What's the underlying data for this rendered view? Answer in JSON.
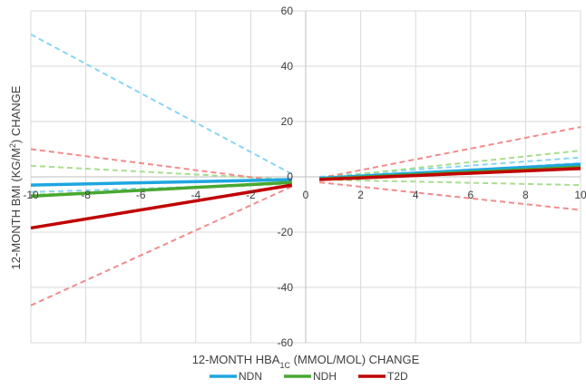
{
  "chart_data": {
    "type": "line",
    "xlabel": "12-MONTH HBA",
    "xlabel_sub": "1C",
    "xlabel_rest": " (MMOL/MOL) CHANGE",
    "ylabel": "12-MONTH BMI (KG/M",
    "ylabel_sup": "2",
    "ylabel_rest": ") CHANGE",
    "xlim": [
      -10,
      10
    ],
    "ylim": [
      -60,
      60
    ],
    "x_ticks": [
      "-10",
      "-8",
      "-6",
      "-4",
      "-2",
      "0",
      "2",
      "4",
      "6",
      "8",
      "10"
    ],
    "y_ticks": [
      "60",
      "40",
      "20",
      "0",
      "-20",
      "-40",
      "-60"
    ],
    "grid": true,
    "legend_position": "bottom",
    "colors": {
      "NDN": "#1ea6e0",
      "NDH": "#48a832",
      "T2D": "#c00000",
      "NDN_ci": "#87d6f5",
      "NDH_ci": "#a9dd8f",
      "T2D_ci": "#f28b8b",
      "grid": "#d9d9d9",
      "axis": "#bfbfbf"
    },
    "series": [
      {
        "name": "NDN",
        "segments": [
          [
            [
              -10,
              -3
            ],
            [
              -0.5,
              -1
            ]
          ],
          [
            [
              0.5,
              -0.5
            ],
            [
              10,
              4.5
            ]
          ]
        ]
      },
      {
        "name": "NDH",
        "segments": [
          [
            [
              -10,
              -7
            ],
            [
              -0.5,
              -2
            ]
          ],
          [
            [
              0.5,
              -0.8
            ],
            [
              10,
              3.5
            ]
          ]
        ]
      },
      {
        "name": "T2D",
        "segments": [
          [
            [
              -10,
              -18.5
            ],
            [
              -0.5,
              -3
            ]
          ],
          [
            [
              0.5,
              -1
            ],
            [
              10,
              3
            ]
          ]
        ]
      }
    ],
    "ci_bounds": [
      {
        "series": "NDN",
        "segments": [
          [
            [
              -10,
              51.5
            ],
            [
              -0.5,
              1
            ]
          ],
          [
            [
              -10,
              -5.5
            ],
            [
              -0.5,
              -2.5
            ]
          ],
          [
            [
              0.5,
              0
            ],
            [
              10,
              7
            ]
          ],
          [
            [
              0.5,
              -1
            ],
            [
              10,
              5
            ]
          ]
        ]
      },
      {
        "series": "NDH",
        "segments": [
          [
            [
              -10,
              4
            ],
            [
              -0.5,
              -1
            ]
          ],
          [
            [
              -10,
              -6.5
            ],
            [
              -0.5,
              -2.5
            ]
          ],
          [
            [
              0.5,
              -0.5
            ],
            [
              10,
              9.5
            ]
          ],
          [
            [
              0.5,
              -1
            ],
            [
              10,
              -3
            ]
          ]
        ]
      },
      {
        "series": "T2D",
        "segments": [
          [
            [
              -10,
              10
            ],
            [
              -0.5,
              -2
            ]
          ],
          [
            [
              -10,
              -46.5
            ],
            [
              -0.5,
              -3.5
            ]
          ],
          [
            [
              0.5,
              -0.5
            ],
            [
              10,
              18
            ]
          ],
          [
            [
              0.5,
              -2
            ],
            [
              10,
              -12
            ]
          ]
        ]
      }
    ],
    "legend": [
      "NDN",
      "NDH",
      "T2D"
    ]
  }
}
